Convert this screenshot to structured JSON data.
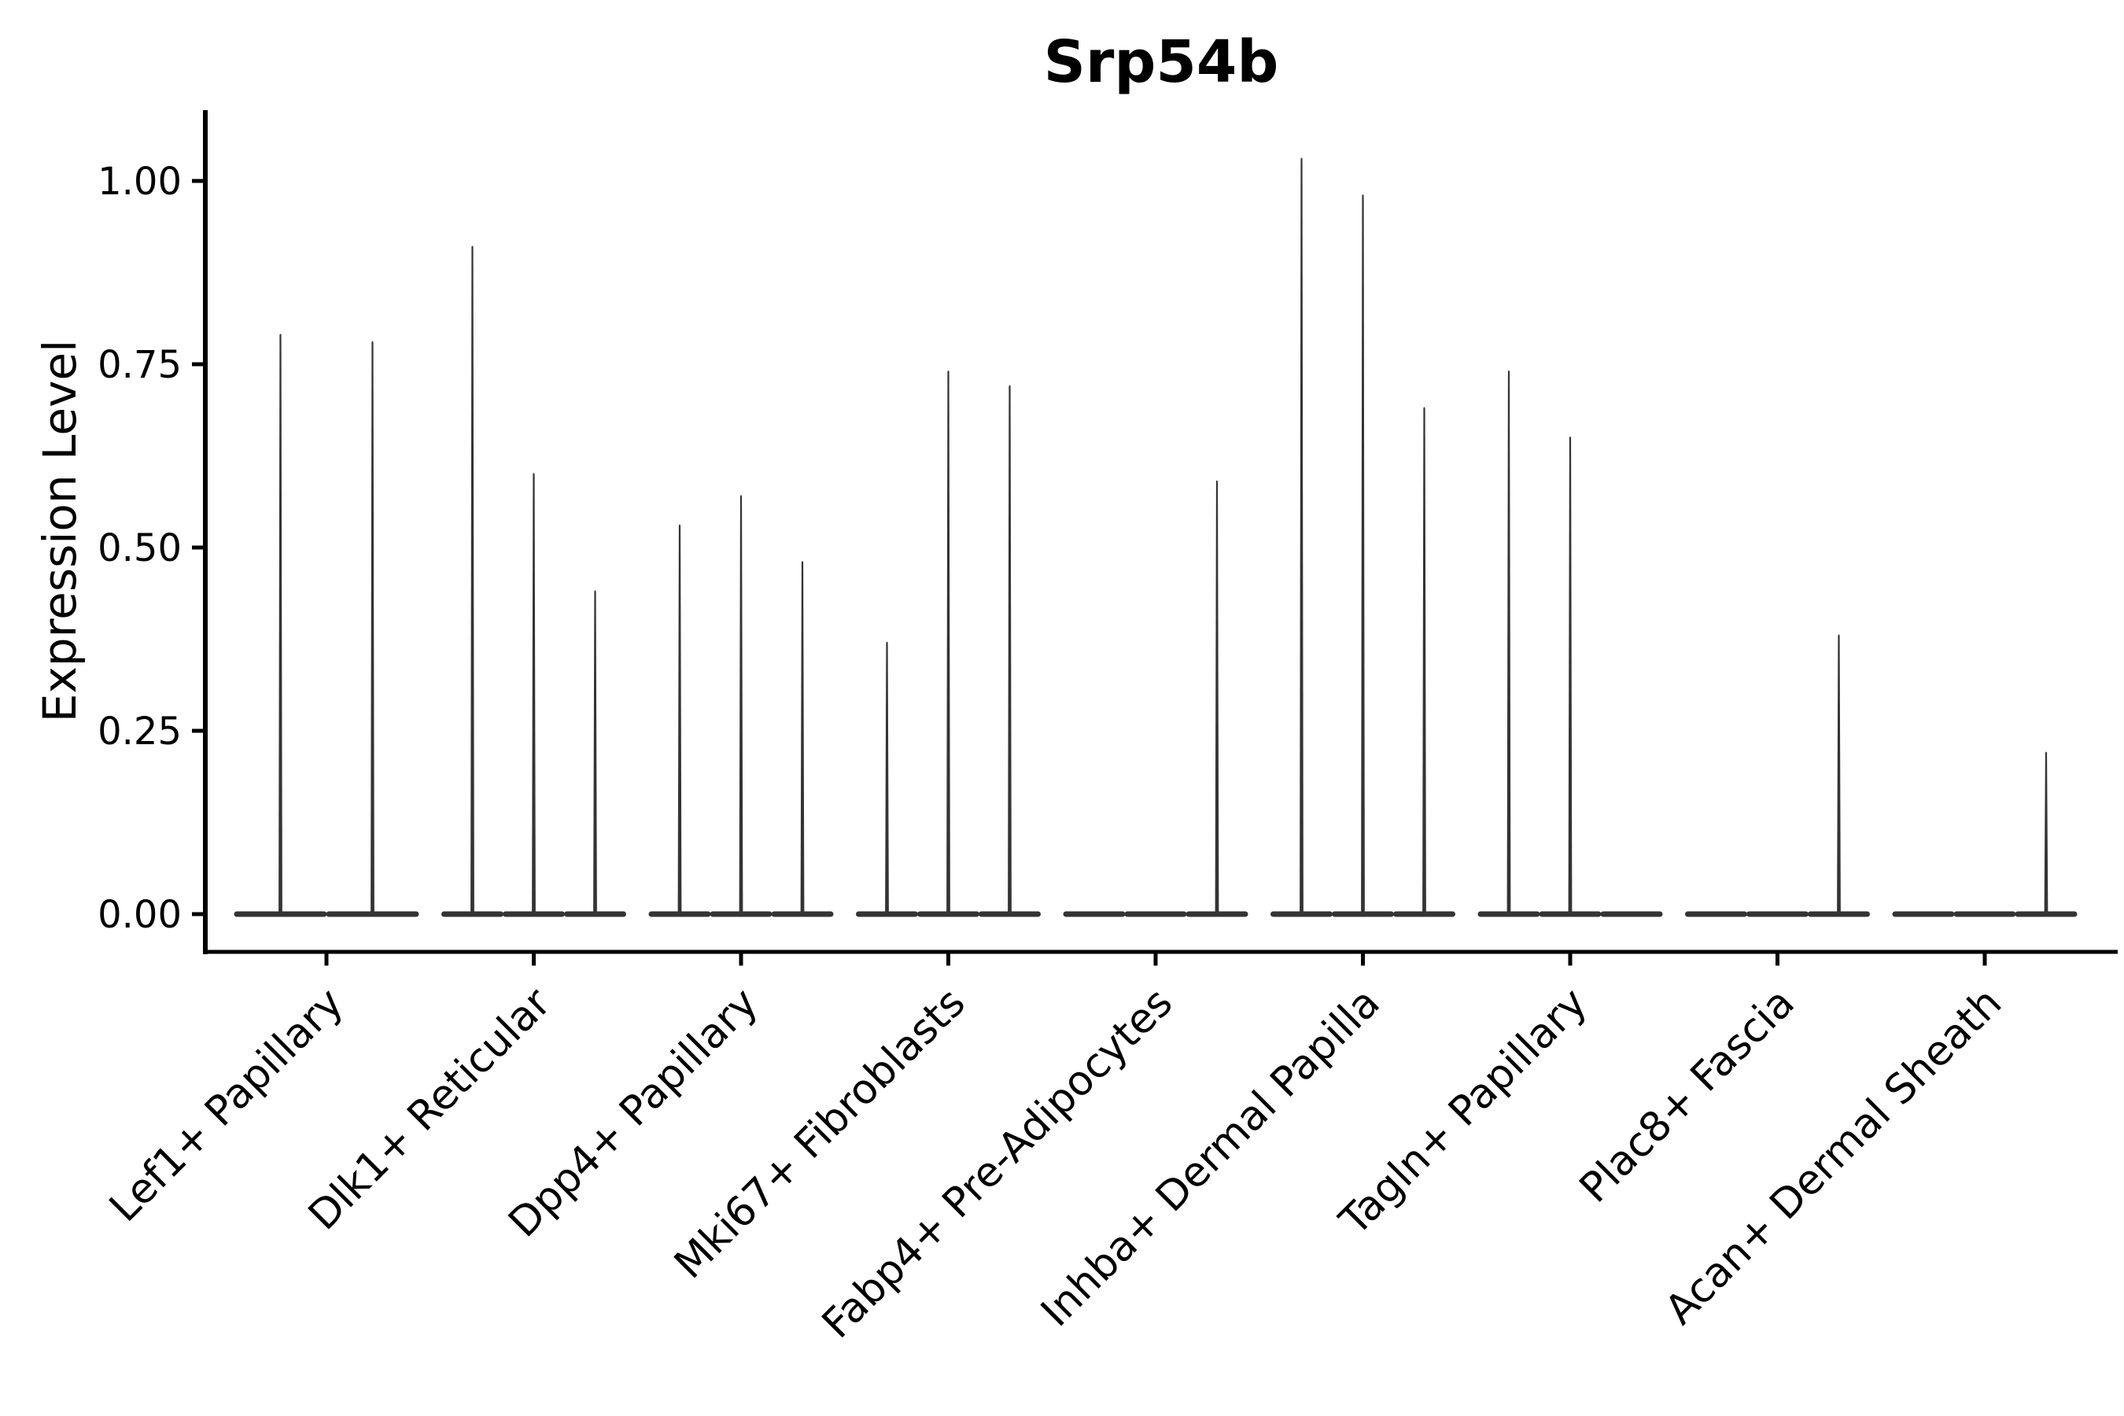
{
  "page": {
    "background_color": "#ffffff"
  },
  "chart_data": {
    "type": "violin",
    "title": "Srp54b",
    "xlabel": "",
    "ylabel": "Expression Level",
    "ylim": [
      -0.05,
      1.1
    ],
    "yticks": [
      0.0,
      0.25,
      0.5,
      0.75,
      1.0
    ],
    "ytick_labels": [
      "0.00",
      "0.25",
      "0.50",
      "0.75",
      "1.00"
    ],
    "grid": "off",
    "legend": "none",
    "baseline_value": 0,
    "categories": [
      "Lef1+ Papillary",
      "Dlk1+ Reticular",
      "Dpp4+ Papillary",
      "Mki67+ Fibroblasts",
      "Fabp4+ Pre-Adipocytes",
      "Inhba+ Dermal Papilla",
      "Tagln+ Papillary",
      "Plac8+ Fascia",
      "Acan+ Dermal Sheath"
    ],
    "groups": [
      {
        "category": "Lef1+ Papillary",
        "violin_max_values": [
          0.79,
          0.78
        ]
      },
      {
        "category": "Dlk1+ Reticular",
        "violin_max_values": [
          0.91,
          0.6,
          0.44
        ]
      },
      {
        "category": "Dpp4+ Papillary",
        "violin_max_values": [
          0.53,
          0.57,
          0.48
        ]
      },
      {
        "category": "Mki67+ Fibroblasts",
        "violin_max_values": [
          0.37,
          0.74,
          0.72
        ]
      },
      {
        "category": "Fabp4+ Pre-Adipocytes",
        "violin_max_values": [
          0.0,
          0.0,
          0.59
        ]
      },
      {
        "category": "Inhba+ Dermal Papilla",
        "violin_max_values": [
          1.03,
          0.98,
          0.69
        ]
      },
      {
        "category": "Tagln+ Papillary",
        "violin_max_values": [
          0.74,
          0.65,
          0.0
        ]
      },
      {
        "category": "Plac8+ Fascia",
        "violin_max_values": [
          0.0,
          0.0,
          0.38
        ]
      },
      {
        "category": "Acan+ Dermal Sheath",
        "violin_max_values": [
          0.0,
          0.0,
          0.22
        ]
      }
    ],
    "colors": {
      "violin_stroke": "#343434",
      "axis": "#000000",
      "text": "#000000"
    }
  }
}
